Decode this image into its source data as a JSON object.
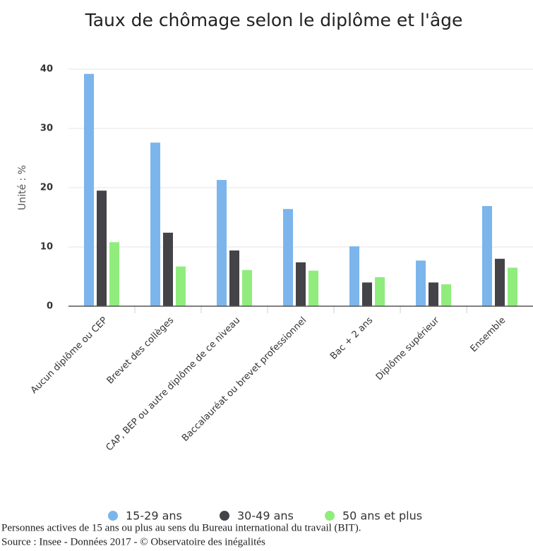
{
  "chart_data": {
    "type": "bar",
    "title": "Taux de chômage selon le diplôme et l'âge",
    "y_label": "Unité : %",
    "categories": [
      "Aucun diplôme ou CEP",
      "Brevet des collèges",
      "CAP, BEP ou autre diplôme de ce niveau",
      "Baccalauréat ou brevet professionnel",
      "Bac + 2 ans",
      "Diplôme supérieur",
      "Ensemble"
    ],
    "series": [
      {
        "name": "15-29 ans",
        "color": "#7cb5ec",
        "values": [
          39.2,
          27.6,
          21.3,
          16.4,
          10.1,
          7.7,
          16.9
        ]
      },
      {
        "name": "30-49 ans",
        "color": "#434348",
        "values": [
          19.5,
          12.4,
          9.4,
          7.4,
          4.0,
          4.0,
          8.0
        ]
      },
      {
        "name": "50 ans et plus",
        "color": "#90ed7d",
        "values": [
          10.8,
          6.7,
          6.1,
          6.0,
          4.9,
          3.7,
          6.5
        ]
      }
    ],
    "ylim": [
      0,
      40
    ],
    "yticks": [
      0,
      10,
      20,
      30,
      40
    ],
    "grid": true,
    "notes": [
      "Personnes actives de 15 ans ou plus au sens du Bureau international du travail (BIT).",
      "Source : Insee - Données 2017 - © Observatoire des inégalités"
    ]
  }
}
